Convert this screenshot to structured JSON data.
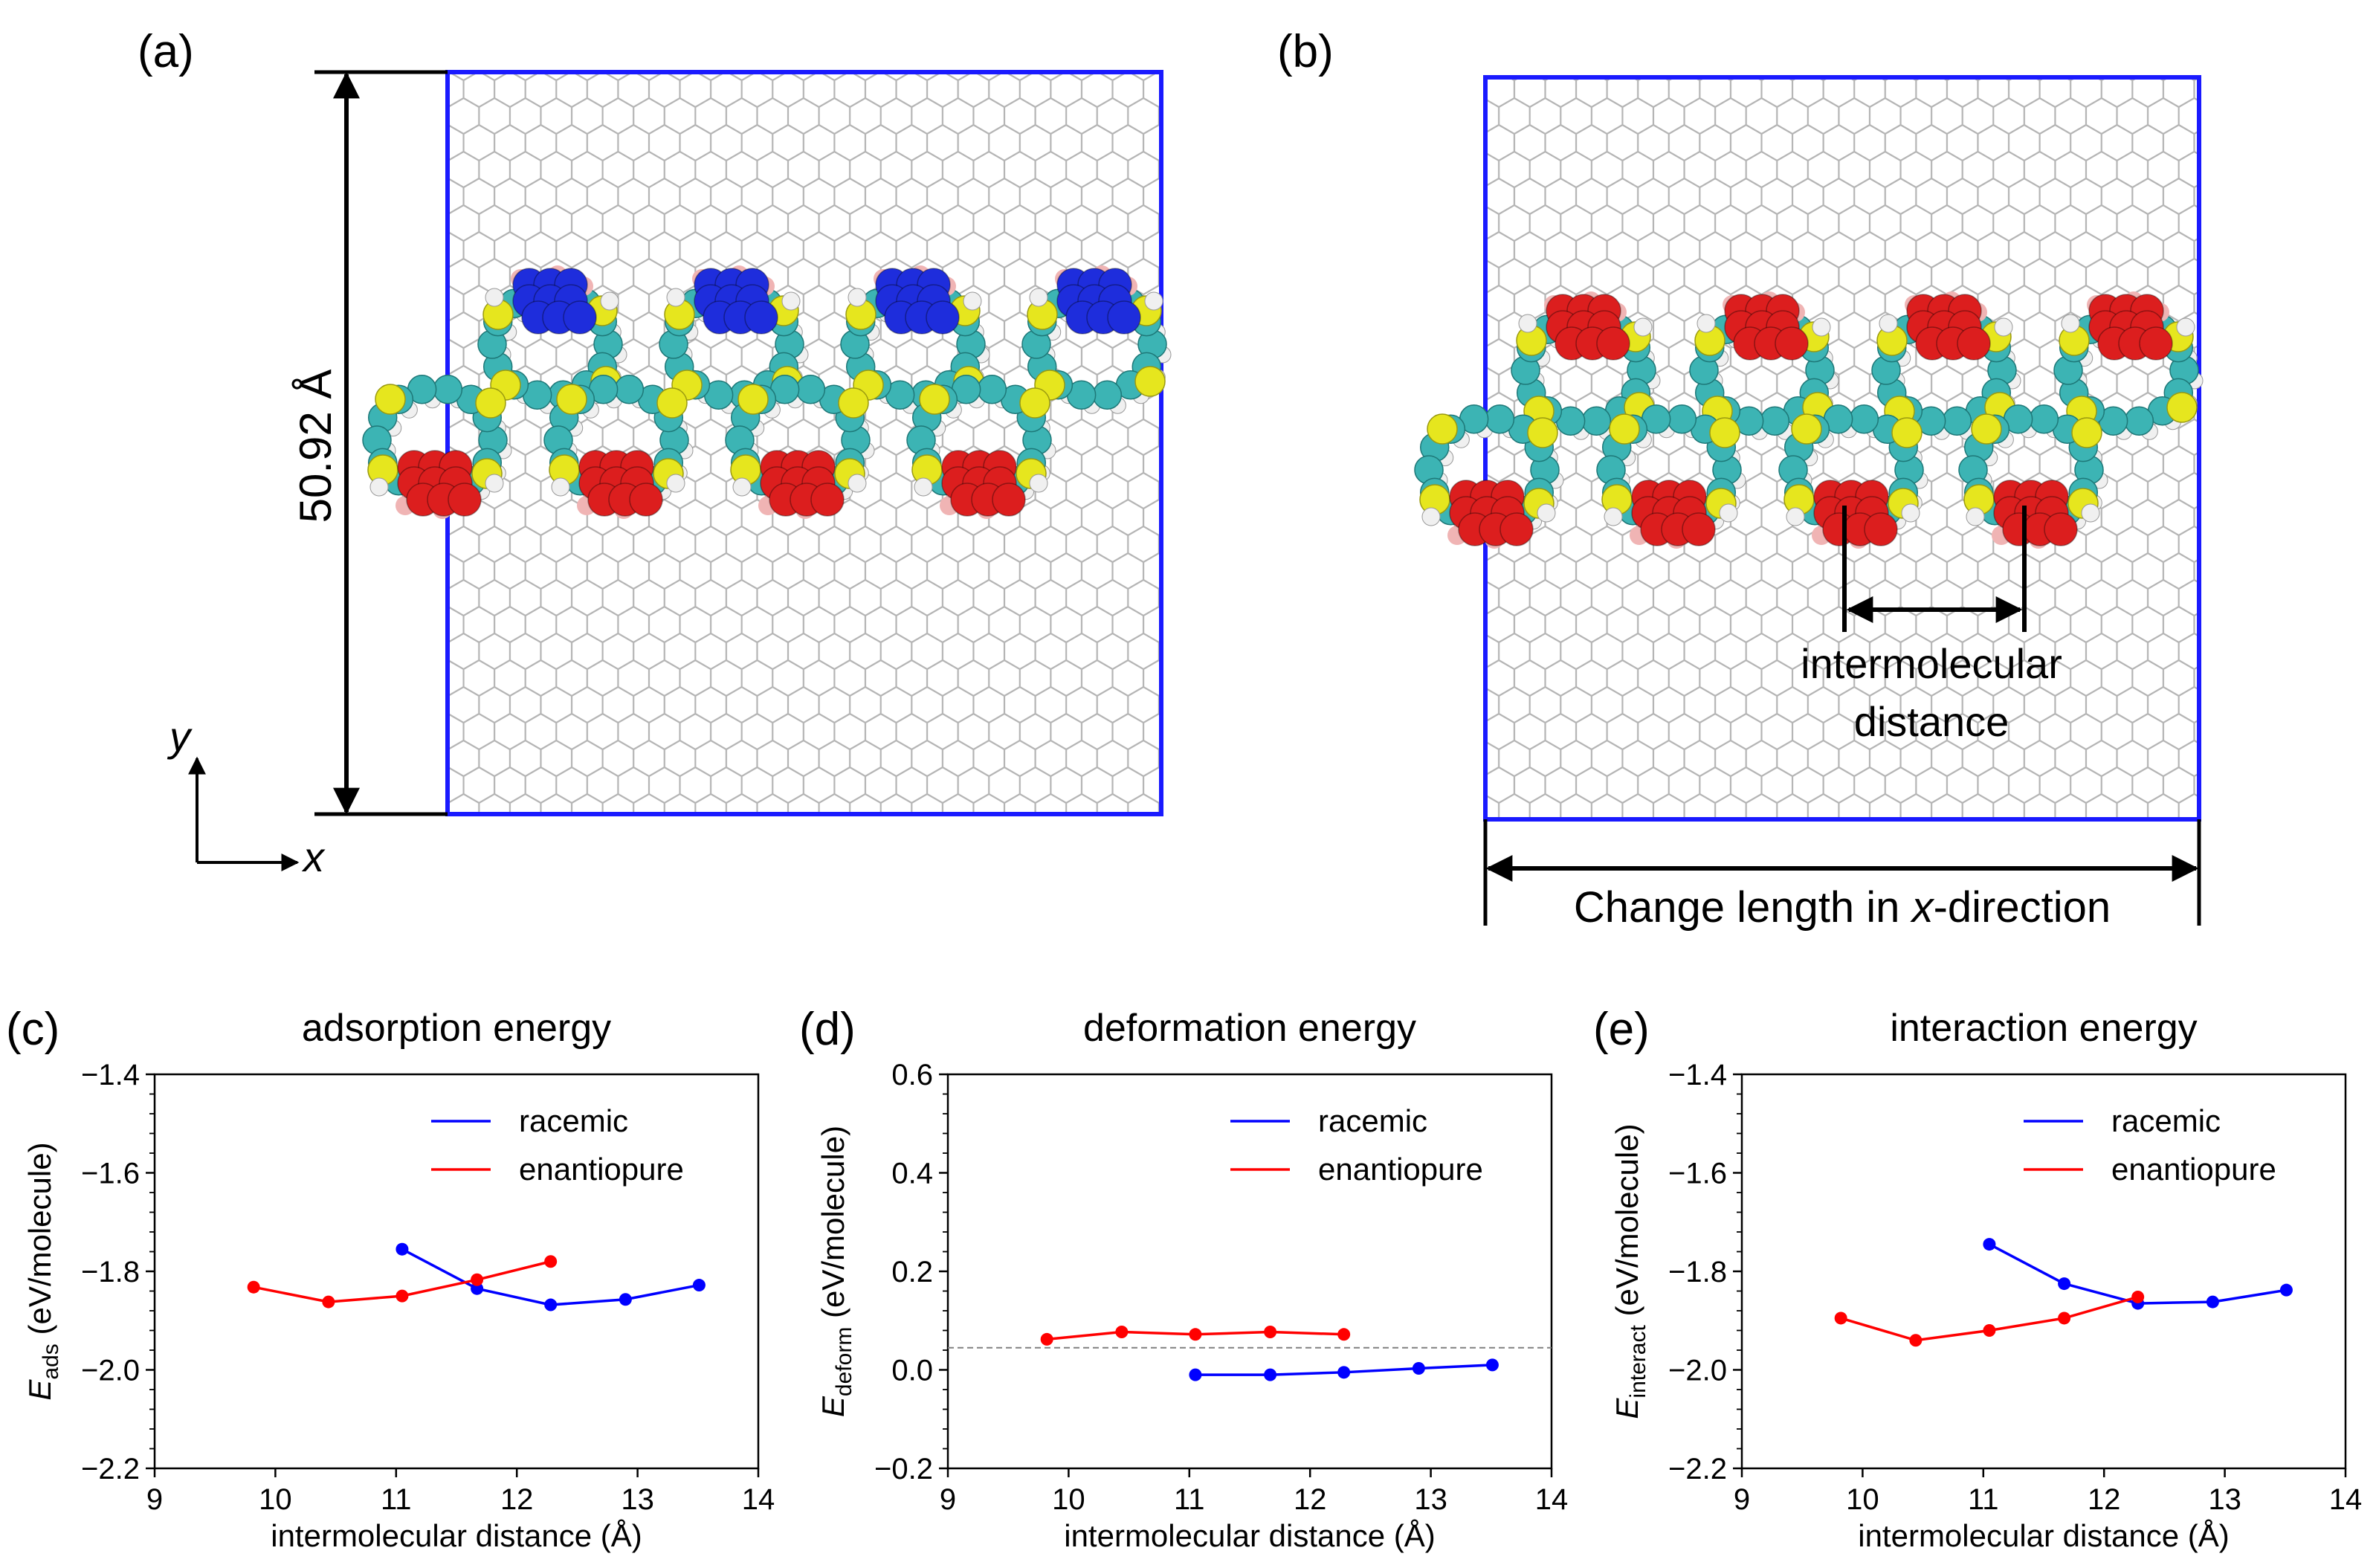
{
  "panel_a": {
    "label": "(a)",
    "dimension_label": "50.92 Å",
    "axis_x": "x",
    "axis_y": "y",
    "colors": {
      "cell_border": "#1a1aff",
      "lattice": "#b4b4b4",
      "carbon": "#3cb4b4",
      "sulfur": "#e6e61e",
      "hydrogen": "#f0f0f0",
      "red_core": "#dc1e1e",
      "blue_core": "#1e2ddc",
      "pink": "#f0b4b4"
    }
  },
  "panel_b": {
    "label": "(b)",
    "distance_label_1": "intermolecular",
    "distance_label_2": "distance",
    "change_length_prefix": "Change length in ",
    "change_length_axis": "x",
    "change_length_suffix": "-direction"
  },
  "chart_data": [
    {
      "type": "line",
      "panel": "(c)",
      "title": "adsorption energy",
      "ylabel_symbol": "E",
      "ylabel_sub": "ads",
      "ylabel_unit": " (eV/molecule)",
      "xlabel": "intermolecular distance (Å)",
      "xlim": [
        9,
        14
      ],
      "ylim": [
        -2.2,
        -1.4
      ],
      "xticks": [
        "9",
        "10",
        "11",
        "12",
        "13",
        "14"
      ],
      "yticks": [
        "−2.2",
        "−2.0",
        "−1.8",
        "−1.6",
        "−1.4"
      ],
      "legend_position": "top-right",
      "series": [
        {
          "name": "racemic",
          "color": "#0000ff",
          "x": [
            11.05,
            11.67,
            12.28,
            12.9,
            13.51
          ],
          "y": [
            -1.755,
            -1.835,
            -1.868,
            -1.857,
            -1.828
          ]
        },
        {
          "name": "enantiopure",
          "color": "#ff0000",
          "x": [
            9.82,
            10.44,
            11.05,
            11.67,
            12.28
          ],
          "y": [
            -1.832,
            -1.862,
            -1.85,
            -1.817,
            -1.78
          ]
        }
      ]
    },
    {
      "type": "line",
      "panel": "(d)",
      "title": "deformation energy",
      "ylabel_symbol": "E",
      "ylabel_sub": "deform",
      "ylabel_unit": " (eV/molecule)",
      "xlabel": "intermolecular distance (Å)",
      "xlim": [
        9,
        14
      ],
      "ylim": [
        -0.2,
        0.6
      ],
      "xticks": [
        "9",
        "10",
        "11",
        "12",
        "13",
        "14"
      ],
      "yticks": [
        "−0.2",
        "0.0",
        "0.2",
        "0.4",
        "0.6"
      ],
      "reference_line_y": 0.045,
      "legend_position": "top-right",
      "series": [
        {
          "name": "racemic",
          "color": "#0000ff",
          "x": [
            11.05,
            11.67,
            12.28,
            12.9,
            13.51
          ],
          "y": [
            -0.01,
            -0.01,
            -0.005,
            0.003,
            0.01
          ]
        },
        {
          "name": "enantiopure",
          "color": "#ff0000",
          "x": [
            9.82,
            10.44,
            11.05,
            11.67,
            12.28
          ],
          "y": [
            0.062,
            0.077,
            0.072,
            0.077,
            0.072
          ]
        }
      ]
    },
    {
      "type": "line",
      "panel": "(e)",
      "title": "interaction energy",
      "ylabel_symbol": "E",
      "ylabel_sub": "interact",
      "ylabel_unit": " (eV/molecule)",
      "xlabel": "intermolecular distance (Å)",
      "xlim": [
        9,
        14
      ],
      "ylim": [
        -2.2,
        -1.4
      ],
      "xticks": [
        "9",
        "10",
        "11",
        "12",
        "13",
        "14"
      ],
      "yticks": [
        "−2.2",
        "−2.0",
        "−1.8",
        "−1.6",
        "−1.4"
      ],
      "legend_position": "top-right",
      "series": [
        {
          "name": "racemic",
          "color": "#0000ff",
          "x": [
            11.05,
            11.67,
            12.28,
            12.9,
            13.51
          ],
          "y": [
            -1.745,
            -1.825,
            -1.865,
            -1.862,
            -1.838
          ]
        },
        {
          "name": "enantiopure",
          "color": "#ff0000",
          "x": [
            9.82,
            10.44,
            11.05,
            11.67,
            12.28
          ],
          "y": [
            -1.895,
            -1.94,
            -1.92,
            -1.895,
            -1.852
          ]
        }
      ]
    }
  ]
}
